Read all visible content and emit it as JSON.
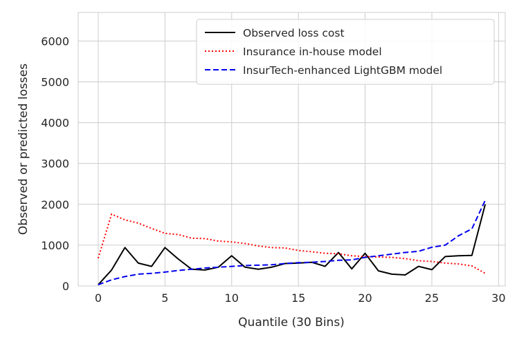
{
  "chart_data": {
    "type": "line",
    "xlabel": "Quantile (30 Bins)",
    "ylabel": "Observed or predicted losses",
    "xlim": [
      -1.5,
      30.5
    ],
    "ylim": [
      0,
      6700
    ],
    "xticks": [
      0,
      5,
      10,
      15,
      20,
      25,
      30
    ],
    "yticks": [
      0,
      1000,
      2000,
      3000,
      4000,
      5000,
      6000
    ],
    "grid": true,
    "legend_position": "top-right",
    "x": [
      0,
      1,
      2,
      3,
      4,
      5,
      6,
      7,
      8,
      9,
      10,
      11,
      12,
      13,
      14,
      15,
      16,
      17,
      18,
      19,
      20,
      21,
      22,
      23,
      24,
      25,
      26,
      27,
      28,
      29
    ],
    "series": [
      {
        "name": "Observed loss cost",
        "color": "#000000",
        "style": "solid",
        "values": [
          30,
          390,
          940,
          560,
          480,
          940,
          660,
          410,
          390,
          460,
          740,
          460,
          410,
          460,
          550,
          560,
          580,
          480,
          820,
          420,
          800,
          370,
          290,
          270,
          480,
          400,
          720,
          740,
          750,
          2000
        ]
      },
      {
        "name": "Insurance in-house model",
        "color": "#ff0000",
        "style": "dotted",
        "values": [
          680,
          1760,
          1620,
          1540,
          1410,
          1290,
          1260,
          1170,
          1160,
          1100,
          1080,
          1040,
          980,
          940,
          930,
          870,
          840,
          800,
          790,
          740,
          720,
          710,
          700,
          670,
          620,
          600,
          560,
          540,
          490,
          310
        ]
      },
      {
        "name": "InsurTech-enhanced LightGBM model",
        "color": "#0000ee",
        "style": "dashed",
        "values": [
          30,
          150,
          230,
          290,
          310,
          340,
          380,
          410,
          440,
          460,
          480,
          500,
          510,
          520,
          550,
          570,
          580,
          600,
          630,
          640,
          700,
          740,
          780,
          820,
          850,
          950,
          1000,
          1230,
          1400,
          2100
        ]
      }
    ]
  }
}
